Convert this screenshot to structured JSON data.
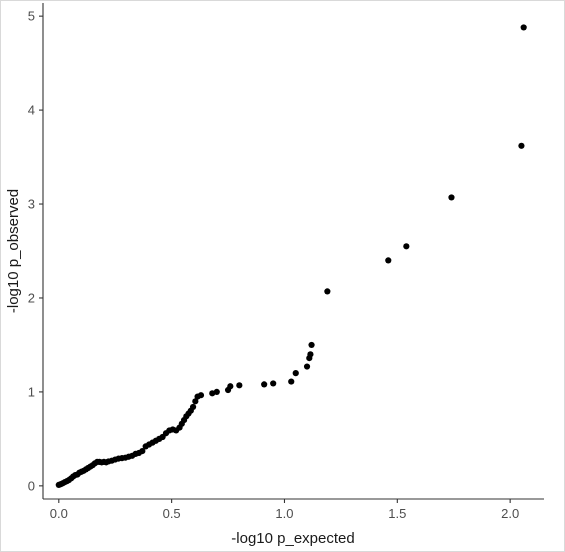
{
  "chart_data": {
    "type": "scatter",
    "title": "",
    "xlabel": "-log10 p_expected",
    "ylabel": "-log10 p_observed",
    "xlim": [
      -0.07,
      2.15
    ],
    "ylim": [
      -0.14,
      5.14
    ],
    "xticks": [
      0.0,
      0.5,
      1.0,
      1.5,
      2.0
    ],
    "xtick_labels": [
      "0.0",
      "0.5",
      "1.0",
      "1.5",
      "2.0"
    ],
    "yticks": [
      0,
      1,
      2,
      3,
      4,
      5
    ],
    "ytick_labels": [
      "0",
      "1",
      "2",
      "3",
      "4",
      "5"
    ],
    "grid": false,
    "legend": "none",
    "point_color": "#000000",
    "points": [
      [
        0.0,
        0.01
      ],
      [
        0.009,
        0.018
      ],
      [
        0.018,
        0.028
      ],
      [
        0.027,
        0.04
      ],
      [
        0.036,
        0.05
      ],
      [
        0.045,
        0.062
      ],
      [
        0.055,
        0.08
      ],
      [
        0.064,
        0.1
      ],
      [
        0.073,
        0.115
      ],
      [
        0.082,
        0.12
      ],
      [
        0.091,
        0.14
      ],
      [
        0.1,
        0.15
      ],
      [
        0.11,
        0.16
      ],
      [
        0.12,
        0.175
      ],
      [
        0.13,
        0.19
      ],
      [
        0.14,
        0.205
      ],
      [
        0.15,
        0.22
      ],
      [
        0.16,
        0.24
      ],
      [
        0.17,
        0.255
      ],
      [
        0.18,
        0.255
      ],
      [
        0.19,
        0.25
      ],
      [
        0.2,
        0.255
      ],
      [
        0.21,
        0.25
      ],
      [
        0.22,
        0.26
      ],
      [
        0.235,
        0.268
      ],
      [
        0.25,
        0.28
      ],
      [
        0.265,
        0.29
      ],
      [
        0.28,
        0.295
      ],
      [
        0.295,
        0.3
      ],
      [
        0.31,
        0.31
      ],
      [
        0.325,
        0.32
      ],
      [
        0.34,
        0.34
      ],
      [
        0.355,
        0.35
      ],
      [
        0.37,
        0.37
      ],
      [
        0.385,
        0.42
      ],
      [
        0.4,
        0.44
      ],
      [
        0.415,
        0.46
      ],
      [
        0.43,
        0.48
      ],
      [
        0.445,
        0.5
      ],
      [
        0.46,
        0.52
      ],
      [
        0.475,
        0.56
      ],
      [
        0.49,
        0.59
      ],
      [
        0.505,
        0.6
      ],
      [
        0.52,
        0.59
      ],
      [
        0.535,
        0.62
      ],
      [
        0.545,
        0.66
      ],
      [
        0.555,
        0.7
      ],
      [
        0.565,
        0.74
      ],
      [
        0.575,
        0.77
      ],
      [
        0.585,
        0.8
      ],
      [
        0.595,
        0.84
      ],
      [
        0.605,
        0.9
      ],
      [
        0.615,
        0.95
      ],
      [
        0.63,
        0.965
      ],
      [
        0.68,
        0.985
      ],
      [
        0.7,
        1.0
      ],
      [
        0.75,
        1.02
      ],
      [
        0.76,
        1.06
      ],
      [
        0.8,
        1.07
      ],
      [
        0.91,
        1.08
      ],
      [
        0.95,
        1.09
      ],
      [
        1.03,
        1.11
      ],
      [
        1.05,
        1.2
      ],
      [
        1.1,
        1.27
      ],
      [
        1.11,
        1.36
      ],
      [
        1.115,
        1.4
      ],
      [
        1.12,
        1.5
      ],
      [
        1.19,
        2.07
      ],
      [
        1.46,
        2.4
      ],
      [
        1.54,
        2.55
      ],
      [
        1.74,
        3.07
      ],
      [
        2.05,
        3.62
      ],
      [
        2.06,
        4.88
      ]
    ]
  }
}
